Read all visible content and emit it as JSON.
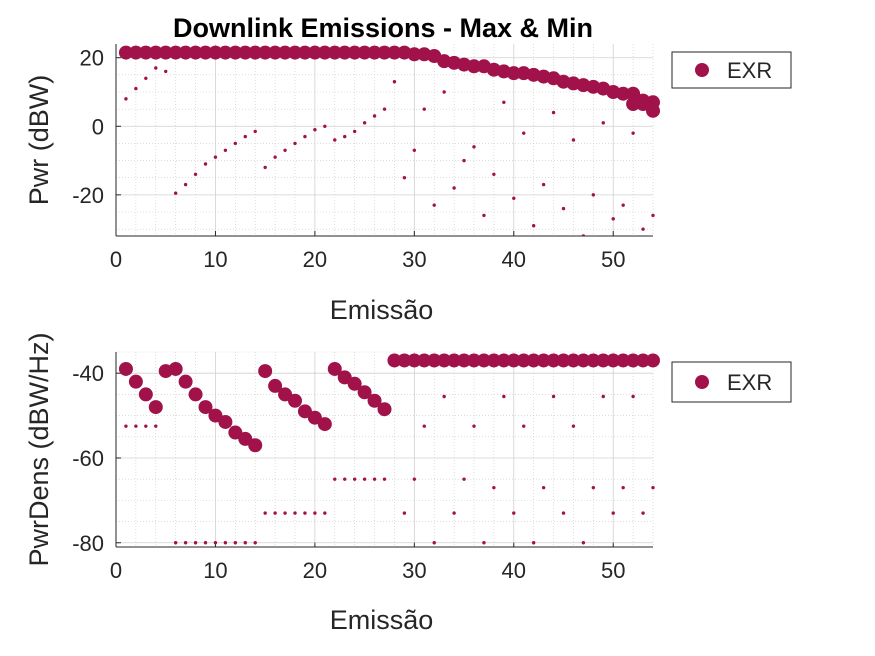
{
  "figure": {
    "title": "Downlink Emissions - Max & Min"
  },
  "colors": {
    "marker": "#A2124A",
    "grid": "#C8C8C8",
    "axis": "#262626",
    "text": "#262626"
  },
  "chart_data": [
    {
      "type": "scatter",
      "title": "Downlink Emissions - Max & Min",
      "xlabel": "Emissão",
      "ylabel": "Pwr (dBW)",
      "xlim": [
        0,
        54
      ],
      "ylim": [
        -32,
        24
      ],
      "xticks": [
        0,
        10,
        20,
        30,
        40,
        50
      ],
      "yticks": [
        -20,
        0,
        20
      ],
      "grid": true,
      "minor_grid": true,
      "legend": {
        "position": "outside-right-top",
        "entries": [
          "EXR"
        ]
      },
      "series": [
        {
          "name": "EXR",
          "role": "max",
          "marker_size": "large",
          "x": [
            1,
            2,
            3,
            4,
            5,
            6,
            7,
            8,
            9,
            10,
            11,
            12,
            13,
            14,
            15,
            16,
            17,
            18,
            19,
            20,
            21,
            22,
            23,
            24,
            25,
            26,
            27,
            28,
            29,
            30,
            31,
            32,
            33,
            34,
            35,
            36,
            37,
            38,
            39,
            40,
            41,
            42,
            43,
            44,
            45,
            46,
            47,
            48,
            49,
            50,
            51,
            52,
            53,
            54
          ],
          "y": [
            21.5,
            21.5,
            21.5,
            21.5,
            21.5,
            21.5,
            21.5,
            21.5,
            21.5,
            21.5,
            21.5,
            21.5,
            21.5,
            21.5,
            21.5,
            21.5,
            21.5,
            21.5,
            21.5,
            21.5,
            21.5,
            21.5,
            21.5,
            21.5,
            21.5,
            21.5,
            21.5,
            21.5,
            21.5,
            21,
            21,
            20.5,
            19,
            18.5,
            18,
            17.5,
            17.5,
            16.5,
            16,
            15.5,
            15.5,
            15,
            14.5,
            14,
            13,
            12.5,
            12,
            11.5,
            11,
            10,
            9.5,
            9.5,
            7.5,
            7
          ]
        },
        {
          "name": "",
          "role": "max-continued",
          "marker_size": "large",
          "x": [
            52,
            53,
            54
          ],
          "y": [
            6.5,
            6.5,
            4.5
          ]
        },
        {
          "name": "",
          "role": "other",
          "marker_size": "small",
          "x": [
            1,
            2,
            3,
            4,
            5,
            6,
            7,
            8,
            9,
            10,
            11,
            12,
            13,
            14,
            15,
            16,
            17,
            18,
            19,
            20,
            21,
            22,
            23,
            24,
            25,
            26,
            27,
            28,
            29,
            30,
            31,
            32,
            33,
            34,
            35,
            36,
            37,
            38,
            39,
            40,
            41,
            42,
            43,
            44,
            45,
            46,
            47,
            48,
            49,
            50,
            51,
            52,
            53,
            54
          ],
          "y": [
            8,
            11,
            14,
            17,
            16,
            -19.5,
            -17,
            -14,
            -11,
            -9,
            -7,
            -5,
            -3,
            -1.5,
            -12,
            -9,
            -7,
            -5,
            -3,
            -1,
            0,
            -4,
            -3,
            -1.5,
            1,
            3,
            5,
            13,
            -15,
            -7,
            5,
            -23,
            10,
            -18,
            -10,
            -6,
            -26,
            -14,
            7,
            -21,
            -2,
            -29,
            -17,
            4,
            -24,
            -4,
            -32,
            -20,
            1,
            -27,
            -23,
            -2,
            -30,
            -26
          ]
        }
      ]
    },
    {
      "type": "scatter",
      "xlabel": "Emissão",
      "ylabel": "PwrDens (dBW/Hz)",
      "xlim": [
        0,
        54
      ],
      "ylim": [
        -81,
        -35
      ],
      "xticks": [
        0,
        10,
        20,
        30,
        40,
        50
      ],
      "yticks": [
        -80,
        -60,
        -40
      ],
      "grid": true,
      "minor_grid": true,
      "legend": {
        "position": "outside-right-top",
        "entries": [
          "EXR"
        ]
      },
      "series": [
        {
          "name": "EXR",
          "role": "max",
          "marker_size": "large",
          "x": [
            1,
            2,
            3,
            4,
            5,
            6,
            7,
            8,
            9,
            10,
            11,
            12,
            13,
            14,
            15,
            16,
            17,
            18,
            19,
            20,
            21,
            22,
            23,
            24,
            25,
            26,
            27,
            28,
            29,
            30,
            31,
            32,
            33,
            34,
            35,
            36,
            37,
            38,
            39,
            40,
            41,
            42,
            43,
            44,
            45,
            46,
            47,
            48,
            49,
            50,
            51,
            52,
            53,
            54
          ],
          "y": [
            -39,
            -42,
            -45,
            -48,
            -39.5,
            -39,
            -42,
            -45,
            -48,
            -50,
            -51.5,
            -54,
            -55.5,
            -57,
            -39.5,
            -43,
            -45,
            -46.5,
            -49,
            -50.5,
            -52,
            -39,
            -41,
            -42.5,
            -44.5,
            -46.5,
            -48.5,
            -37,
            -37,
            -37,
            -37,
            -37,
            -37,
            -37,
            -37,
            -37,
            -37,
            -37,
            -37,
            -37,
            -37,
            -37,
            -37,
            -37,
            -37,
            -37,
            -37,
            -37,
            -37,
            -37,
            -37,
            -37,
            -37,
            -37
          ]
        },
        {
          "name": "",
          "role": "min-a",
          "marker_size": "small",
          "x": [
            1,
            2,
            3,
            4,
            6,
            7,
            8,
            9,
            10,
            11,
            12,
            13,
            14,
            15,
            16,
            17,
            18,
            19,
            20,
            21,
            22,
            23,
            24,
            25,
            26,
            27
          ],
          "y": [
            -52.5,
            -52.5,
            -52.5,
            -52.5,
            -80,
            -80,
            -80,
            -80,
            -80,
            -80,
            -80,
            -80,
            -80,
            -73,
            -73,
            -73,
            -73,
            -73,
            -73,
            -73,
            -65,
            -65,
            -65,
            -65,
            -65,
            -65
          ]
        },
        {
          "name": "",
          "role": "min-b",
          "marker_size": "small",
          "x": [
            29,
            30,
            31,
            32,
            33,
            34,
            35,
            36,
            37,
            38,
            39,
            40,
            41,
            42,
            43,
            44,
            45,
            46,
            47,
            48,
            49,
            50,
            51,
            52,
            53,
            54
          ],
          "y": [
            -73,
            -65,
            -52.5,
            -80,
            -45.5,
            -73,
            -65,
            -52.5,
            -80,
            -67,
            -45.5,
            -73,
            -52.5,
            -80,
            -67,
            -45.5,
            -73,
            -52.5,
            -80,
            -67,
            -45.5,
            -73,
            -67,
            -45.5,
            -73,
            -67
          ]
        }
      ]
    }
  ]
}
